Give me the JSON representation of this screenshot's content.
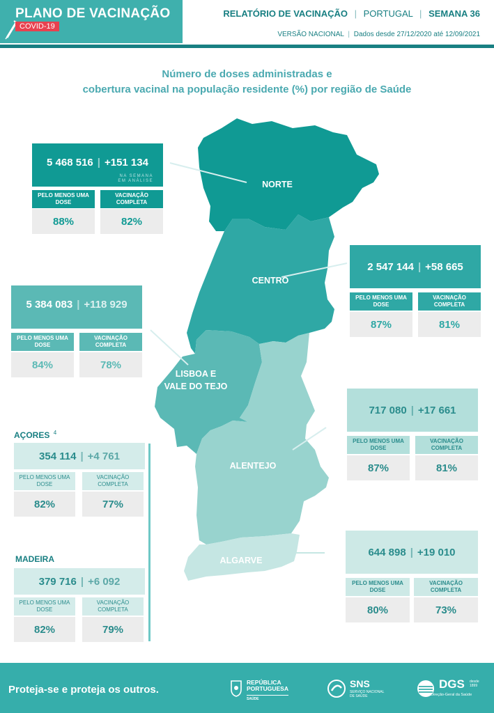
{
  "header": {
    "brand_title": "PLANO DE VACINAÇÃO",
    "brand_tag": "COVID-19",
    "report": "RELATÓRIO DE VACINAÇÃO",
    "country": "PORTUGAL",
    "week": "SEMANA 36",
    "version": "VERSÃO NACIONAL",
    "dates": "Dados desde 27/12/2020 até 12/09/2021"
  },
  "title_line1": "Número de doses administradas e",
  "title_line2": "cobertura vacinal na população residente (%) por região de Saúde",
  "labels": {
    "one_dose": "PELO MENOS UMA DOSE",
    "complete": "VACINAÇÃO COMPLETA",
    "na_semana_1": "NA SEMANA",
    "na_semana_2": "EM ANÁLISE"
  },
  "regions": {
    "norte": {
      "name": "NORTE",
      "doses": "5 468 516",
      "week": "+151 134",
      "one_dose": "88%",
      "complete": "82%"
    },
    "centro": {
      "name": "CENTRO",
      "doses": "2 547 144",
      "week": "+58 665",
      "one_dose": "87%",
      "complete": "81%"
    },
    "lvt": {
      "name_1": "LISBOA E",
      "name_2": "VALE DO TEJO",
      "doses": "5 384 083",
      "week": "+118 929",
      "one_dose": "84%",
      "complete": "78%"
    },
    "alentejo": {
      "name": "ALENTEJO",
      "doses": "717 080",
      "week": "+17 661",
      "one_dose": "87%",
      "complete": "81%"
    },
    "algarve": {
      "name": "ALGARVE",
      "doses": "644 898",
      "week": "+19 010",
      "one_dose": "80%",
      "complete": "73%"
    },
    "acores": {
      "name": "AÇORES",
      "note": "4",
      "doses": "354 114",
      "week": "+4 761",
      "one_dose": "82%",
      "complete": "77%"
    },
    "madeira": {
      "name": "MADEIRA",
      "doses": "379 716",
      "week": "+6 092",
      "one_dose": "82%",
      "complete": "79%"
    }
  },
  "colors": {
    "norte": "#109a94",
    "centro": "#2fa8a5",
    "lvt": "#5bb9b5",
    "alentejo": "#98d3ce",
    "algarve": "#c5e6e3",
    "dark": "#187f82"
  },
  "footer": {
    "slogan": "Proteja-se e proteja os outros.",
    "rp_1": "REPÚBLICA",
    "rp_2": "PORTUGUESA",
    "rp_3": "SAÚDE",
    "sns": "SNS",
    "sns_sub_1": "SERVIÇO NACIONAL",
    "sns_sub_2": "DE SAÚDE",
    "dgs": "DGS",
    "dgs_since_1": "desde",
    "dgs_since_2": "1899",
    "dgs_sub": "Direção-Geral da Saúde"
  }
}
